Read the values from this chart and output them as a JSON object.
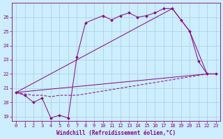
{
  "background_color": "#cceeff",
  "grid_color": "#aaccdd",
  "line_color": "#880088",
  "xlim": [
    -0.5,
    23.5
  ],
  "ylim": [
    18.7,
    27.0
  ],
  "yticks": [
    19,
    20,
    21,
    22,
    23,
    24,
    25,
    26
  ],
  "xticks": [
    0,
    1,
    2,
    3,
    4,
    5,
    6,
    7,
    8,
    9,
    10,
    11,
    12,
    13,
    14,
    15,
    16,
    17,
    18,
    19,
    20,
    21,
    22,
    23
  ],
  "xlabel": "Windchill (Refroidissement éolien,°C)",
  "series_main_x": [
    0,
    1,
    2,
    3,
    4,
    5,
    6,
    7,
    8,
    10,
    11,
    12,
    13,
    14,
    15,
    16,
    17,
    18,
    19,
    20,
    21,
    22,
    23
  ],
  "series_main_y": [
    20.7,
    20.5,
    20.0,
    20.3,
    18.9,
    19.1,
    18.9,
    23.2,
    25.6,
    26.1,
    25.8,
    26.1,
    26.3,
    26.0,
    26.1,
    26.3,
    26.6,
    26.6,
    25.8,
    25.0,
    22.9,
    22.0,
    22.0
  ],
  "series_line1_x": [
    0,
    22,
    23
  ],
  "series_line1_y": [
    20.7,
    22.0,
    22.0
  ],
  "series_line2_x": [
    0,
    18,
    20,
    22,
    23
  ],
  "series_line2_y": [
    20.7,
    26.6,
    25.0,
    22.0,
    22.0
  ],
  "series_flat_x": [
    0,
    1,
    2,
    3,
    4,
    5,
    6,
    7,
    8,
    9,
    10,
    11,
    12,
    13,
    14,
    15,
    16,
    17,
    18,
    19,
    20,
    21,
    22,
    23
  ],
  "series_flat_y": [
    20.7,
    20.6,
    20.5,
    20.5,
    20.4,
    20.5,
    20.5,
    20.5,
    20.6,
    20.7,
    20.8,
    20.9,
    21.0,
    21.1,
    21.2,
    21.3,
    21.4,
    21.5,
    21.6,
    21.7,
    21.8,
    21.9,
    22.0,
    22.0
  ],
  "figwidth": 3.2,
  "figheight": 2.0,
  "dpi": 100
}
